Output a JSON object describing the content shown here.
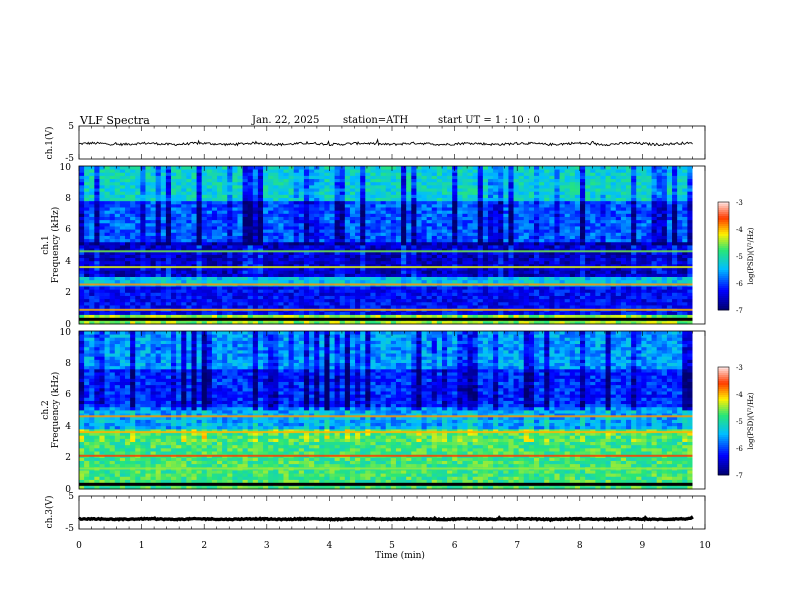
{
  "header": {
    "title": "VLF  Spectra",
    "date": "Jan. 22, 2025",
    "station": "station=ATH",
    "start": "start  UT  =   1  : 10 : 0"
  },
  "colors": {
    "spectrogram_low": "#00007f",
    "spectrogram_mid": "#00c8ff",
    "spectrogram_high": "#ff0000",
    "trace": "#000000",
    "background": "#ffffff"
  },
  "chart_data": [
    {
      "type": "line",
      "name": "ch1-waveform",
      "ylabel": "ch.1(V)",
      "ylim": [
        -5,
        5
      ],
      "yticks": [
        "5",
        "-5"
      ],
      "xlim": [
        0,
        10
      ],
      "level_mean": -0.4,
      "amplitude_approx": 0.6
    },
    {
      "type": "heatmap",
      "name": "ch1-spectrogram",
      "ylabel_line1": "ch.1",
      "ylabel_line2": "Frequency  (kHz)",
      "ylim": [
        0,
        10
      ],
      "yticks": [
        "0",
        "2",
        "4",
        "6",
        "8",
        "10"
      ],
      "xlim": [
        0,
        9.8
      ],
      "colorbar": {
        "label": "log(PSD)(V²/Hz)",
        "range": [
          -7,
          -3
        ],
        "ticks": [
          "-3",
          "-4",
          "-5",
          "-6",
          "-7"
        ]
      },
      "bands": [
        {
          "f": [
            0.0,
            0.6
          ],
          "level": -4.5
        },
        {
          "f": [
            0.6,
            2.4
          ],
          "level": -6.3
        },
        {
          "f": [
            2.4,
            3.1
          ],
          "level": -5.4
        },
        {
          "f": [
            3.1,
            5.2
          ],
          "level": -6.6
        },
        {
          "f": [
            5.2,
            7.8
          ],
          "level": -5.9
        },
        {
          "f": [
            7.8,
            10.0
          ],
          "level": -5.2
        }
      ],
      "lines": [
        {
          "f": 2.5,
          "level": -3.9
        },
        {
          "f": 3.6,
          "level": -4.3
        },
        {
          "f": 4.6,
          "level": -4.6
        },
        {
          "f": 0.9,
          "level": -4.0
        }
      ]
    },
    {
      "type": "heatmap",
      "name": "ch2-spectrogram",
      "ylabel_line1": "ch.2",
      "ylabel_line2": "Frequency  (kHz)",
      "ylim": [
        0,
        10
      ],
      "yticks": [
        "0",
        "2",
        "4",
        "6",
        "8",
        "10"
      ],
      "xlim": [
        0,
        9.8
      ],
      "colorbar": {
        "label": "log(PSD)(V²/Hz)",
        "range": [
          -7,
          -3
        ],
        "ticks": [
          "-3",
          "-4",
          "-5",
          "-6",
          "-7"
        ]
      },
      "bands": [
        {
          "f": [
            0.0,
            0.5
          ],
          "level": -4.8
        },
        {
          "f": [
            0.5,
            3.8
          ],
          "level": -4.8
        },
        {
          "f": [
            3.8,
            5.2
          ],
          "level": -5.6
        },
        {
          "f": [
            5.2,
            7.6
          ],
          "level": -6.1
        },
        {
          "f": [
            7.6,
            10.0
          ],
          "level": -5.6
        }
      ],
      "lines": [
        {
          "f": 2.1,
          "level": -3.6
        },
        {
          "f": 3.6,
          "level": -4.0
        },
        {
          "f": 4.6,
          "level": -3.9
        },
        {
          "f": 1.3,
          "level": -4.5
        }
      ]
    },
    {
      "type": "line",
      "name": "ch3-waveform",
      "ylabel": "ch.3(V)",
      "ylim": [
        -5,
        5
      ],
      "yticks": [
        "5",
        "-5"
      ],
      "xlim": [
        0,
        10
      ],
      "level_mean": -2.0,
      "amplitude_approx": 0.25
    }
  ],
  "xaxis": {
    "label": "Time  (min)",
    "range": [
      0,
      10
    ],
    "ticks": [
      "0",
      "1",
      "2",
      "3",
      "4",
      "5",
      "6",
      "7",
      "8",
      "9",
      "10"
    ]
  }
}
